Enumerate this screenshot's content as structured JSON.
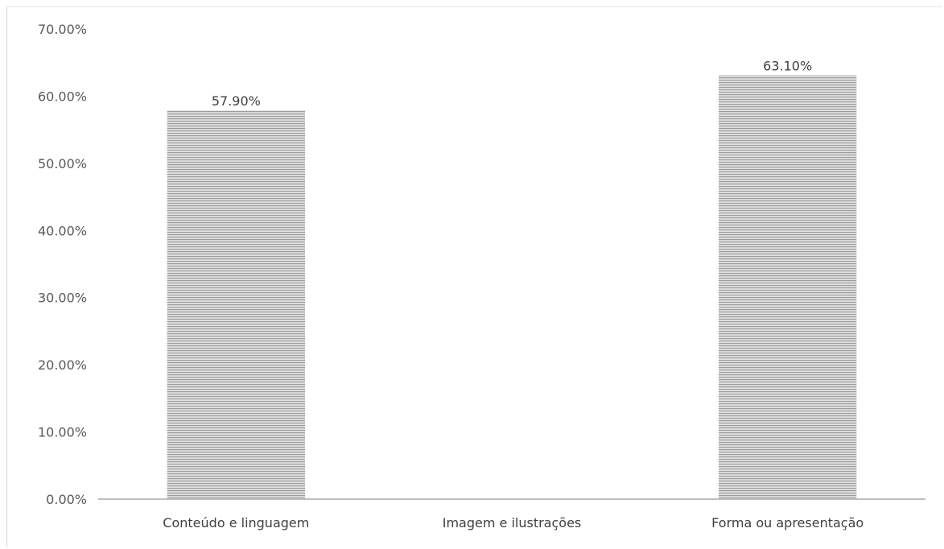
{
  "chart_data": {
    "type": "bar",
    "categories": [
      "Conteúdo e linguagem",
      "Imagem e ilustrações",
      "Forma ou apresentação"
    ],
    "values": [
      57.9,
      0,
      63.1
    ],
    "data_labels": [
      "57.90%",
      "",
      "63.10%"
    ],
    "yticks": [
      "0.00%",
      "10.00%",
      "20.00%",
      "30.00%",
      "40.00%",
      "50.00%",
      "60.00%",
      "70.00%"
    ],
    "ylim": [
      0,
      70
    ],
    "grid": false,
    "legend": "none",
    "bar_fill": "#d0d0d0",
    "bar_stripe": "#9a9a9a",
    "axis_color": "#bfbfbf"
  }
}
